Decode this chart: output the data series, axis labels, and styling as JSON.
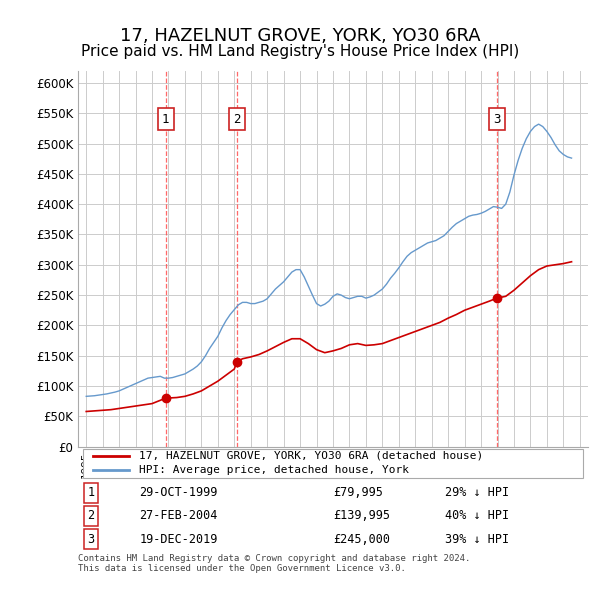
{
  "title": "17, HAZELNUT GROVE, YORK, YO30 6RA",
  "subtitle": "Price paid vs. HM Land Registry's House Price Index (HPI)",
  "title_fontsize": 13,
  "subtitle_fontsize": 11,
  "ylabel_ticks": [
    "£0",
    "£50K",
    "£100K",
    "£150K",
    "£200K",
    "£250K",
    "£300K",
    "£350K",
    "£400K",
    "£450K",
    "£500K",
    "£550K",
    "£600K"
  ],
  "ytick_vals": [
    0,
    50000,
    100000,
    150000,
    200000,
    250000,
    300000,
    350000,
    400000,
    450000,
    500000,
    550000,
    600000
  ],
  "xlim": [
    1994.5,
    2025.5
  ],
  "ylim": [
    0,
    620000
  ],
  "sales": [
    {
      "num": 1,
      "date": "29-OCT-1999",
      "year": 1999.83,
      "price": 79995,
      "label": "29-OCT-1999",
      "price_str": "£79,995",
      "hpi_str": "29% ↓ HPI"
    },
    {
      "num": 2,
      "date": "27-FEB-2004",
      "year": 2004.16,
      "price": 139995,
      "label": "27-FEB-2004",
      "price_str": "£139,995",
      "hpi_str": "40% ↓ HPI"
    },
    {
      "num": 3,
      "date": "19-DEC-2019",
      "year": 2019.96,
      "price": 245000,
      "label": "19-DEC-2019",
      "price_str": "£245,000",
      "hpi_str": "39% ↓ HPI"
    }
  ],
  "red_line_color": "#cc0000",
  "blue_line_color": "#6699cc",
  "vline_color": "#ff4444",
  "box_edge_color": "#cc2222",
  "grid_color": "#cccccc",
  "background_color": "#ffffff",
  "legend_label_red": "17, HAZELNUT GROVE, YORK, YO30 6RA (detached house)",
  "legend_label_blue": "HPI: Average price, detached house, York",
  "footer": "Contains HM Land Registry data © Crown copyright and database right 2024.\nThis data is licensed under the Open Government Licence v3.0.",
  "hpi_data_x": [
    1995.0,
    1995.25,
    1995.5,
    1995.75,
    1996.0,
    1996.25,
    1996.5,
    1996.75,
    1997.0,
    1997.25,
    1997.5,
    1997.75,
    1998.0,
    1998.25,
    1998.5,
    1998.75,
    1999.0,
    1999.25,
    1999.5,
    1999.75,
    2000.0,
    2000.25,
    2000.5,
    2000.75,
    2001.0,
    2001.25,
    2001.5,
    2001.75,
    2002.0,
    2002.25,
    2002.5,
    2002.75,
    2003.0,
    2003.25,
    2003.5,
    2003.75,
    2004.0,
    2004.25,
    2004.5,
    2004.75,
    2005.0,
    2005.25,
    2005.5,
    2005.75,
    2006.0,
    2006.25,
    2006.5,
    2006.75,
    2007.0,
    2007.25,
    2007.5,
    2007.75,
    2008.0,
    2008.25,
    2008.5,
    2008.75,
    2009.0,
    2009.25,
    2009.5,
    2009.75,
    2010.0,
    2010.25,
    2010.5,
    2010.75,
    2011.0,
    2011.25,
    2011.5,
    2011.75,
    2012.0,
    2012.25,
    2012.5,
    2012.75,
    2013.0,
    2013.25,
    2013.5,
    2013.75,
    2014.0,
    2014.25,
    2014.5,
    2014.75,
    2015.0,
    2015.25,
    2015.5,
    2015.75,
    2016.0,
    2016.25,
    2016.5,
    2016.75,
    2017.0,
    2017.25,
    2017.5,
    2017.75,
    2018.0,
    2018.25,
    2018.5,
    2018.75,
    2019.0,
    2019.25,
    2019.5,
    2019.75,
    2020.0,
    2020.25,
    2020.5,
    2020.75,
    2021.0,
    2021.25,
    2021.5,
    2021.75,
    2022.0,
    2022.25,
    2022.5,
    2022.75,
    2023.0,
    2023.25,
    2023.5,
    2023.75,
    2024.0,
    2024.25,
    2024.5
  ],
  "hpi_data_y": [
    83000,
    83500,
    84000,
    85000,
    86000,
    87000,
    88500,
    90000,
    92000,
    95000,
    98000,
    101000,
    104000,
    107000,
    110000,
    113000,
    114000,
    115000,
    116000,
    113000,
    113000,
    114000,
    116000,
    118000,
    120000,
    124000,
    128000,
    133000,
    140000,
    150000,
    162000,
    172000,
    182000,
    196000,
    208000,
    218000,
    226000,
    234000,
    238000,
    238000,
    236000,
    236000,
    238000,
    240000,
    244000,
    252000,
    260000,
    266000,
    272000,
    280000,
    288000,
    292000,
    292000,
    280000,
    265000,
    250000,
    236000,
    232000,
    235000,
    240000,
    248000,
    252000,
    250000,
    246000,
    244000,
    246000,
    248000,
    248000,
    245000,
    247000,
    250000,
    255000,
    260000,
    268000,
    278000,
    286000,
    295000,
    305000,
    314000,
    320000,
    324000,
    328000,
    332000,
    336000,
    338000,
    340000,
    344000,
    348000,
    355000,
    362000,
    368000,
    372000,
    376000,
    380000,
    382000,
    383000,
    385000,
    388000,
    392000,
    396000,
    395000,
    393000,
    400000,
    420000,
    448000,
    472000,
    492000,
    508000,
    520000,
    528000,
    532000,
    528000,
    520000,
    510000,
    498000,
    488000,
    482000,
    478000,
    476000
  ],
  "red_data_x": [
    1995.0,
    1995.5,
    1996.0,
    1996.5,
    1997.0,
    1997.5,
    1998.0,
    1998.5,
    1999.0,
    1999.83,
    2000.5,
    2001.0,
    2001.5,
    2002.0,
    2002.5,
    2003.0,
    2003.5,
    2004.0,
    2004.16,
    2004.5,
    2005.0,
    2005.5,
    2006.0,
    2006.5,
    2007.0,
    2007.5,
    2008.0,
    2008.5,
    2009.0,
    2009.5,
    2010.0,
    2010.5,
    2011.0,
    2011.5,
    2012.0,
    2012.5,
    2013.0,
    2013.5,
    2014.0,
    2014.5,
    2015.0,
    2015.5,
    2016.0,
    2016.5,
    2017.0,
    2017.5,
    2018.0,
    2018.5,
    2019.0,
    2019.5,
    2019.96,
    2020.5,
    2021.0,
    2021.5,
    2022.0,
    2022.5,
    2023.0,
    2023.5,
    2024.0,
    2024.5
  ],
  "red_data_y": [
    58000,
    59000,
    60000,
    61000,
    63000,
    65000,
    67000,
    69000,
    71000,
    79995,
    81000,
    83000,
    87000,
    92000,
    100000,
    108000,
    118000,
    128000,
    139995,
    145000,
    148000,
    152000,
    158000,
    165000,
    172000,
    178000,
    178000,
    170000,
    160000,
    155000,
    158000,
    162000,
    168000,
    170000,
    167000,
    168000,
    170000,
    175000,
    180000,
    185000,
    190000,
    195000,
    200000,
    205000,
    212000,
    218000,
    225000,
    230000,
    235000,
    240000,
    245000,
    248000,
    258000,
    270000,
    282000,
    292000,
    298000,
    300000,
    302000,
    305000
  ]
}
